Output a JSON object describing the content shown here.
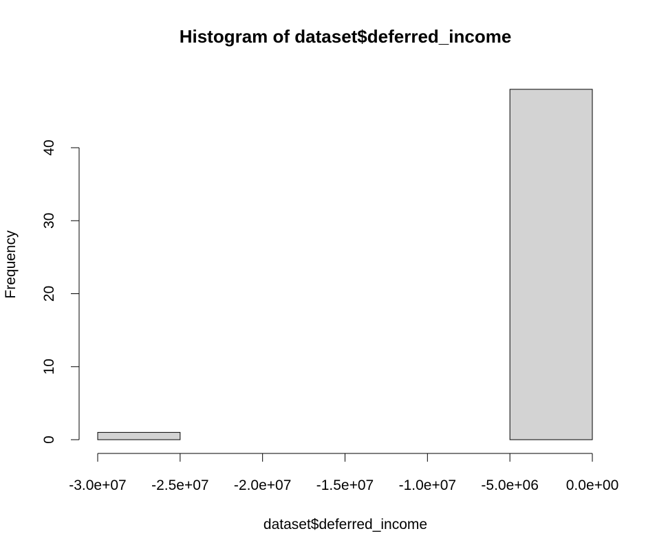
{
  "chart_data": {
    "type": "bar",
    "title": "Histogram of dataset$deferred_income",
    "xlabel": "dataset$deferred_income",
    "ylabel": "Frequency",
    "bins": [
      {
        "from": -30000000,
        "to": -25000000,
        "count": 1
      },
      {
        "from": -25000000,
        "to": -20000000,
        "count": 0
      },
      {
        "from": -20000000,
        "to": -15000000,
        "count": 0
      },
      {
        "from": -15000000,
        "to": -10000000,
        "count": 0
      },
      {
        "from": -10000000,
        "to": -5000000,
        "count": 0
      },
      {
        "from": -5000000,
        "to": 0,
        "count": 48
      }
    ],
    "xlim": [
      -30000000,
      0
    ],
    "ylim": [
      0,
      48
    ],
    "x_ticks": [
      {
        "value": -30000000,
        "label": "-3.0e+07"
      },
      {
        "value": -25000000,
        "label": "-2.5e+07"
      },
      {
        "value": -20000000,
        "label": "-2.0e+07"
      },
      {
        "value": -15000000,
        "label": "-1.5e+07"
      },
      {
        "value": -10000000,
        "label": "-1.0e+07"
      },
      {
        "value": -5000000,
        "label": "-5.0e+06"
      },
      {
        "value": 0,
        "label": "0.0e+00"
      }
    ],
    "y_ticks": [
      {
        "value": 0,
        "label": "0"
      },
      {
        "value": 10,
        "label": "10"
      },
      {
        "value": 20,
        "label": "20"
      },
      {
        "value": 30,
        "label": "30"
      },
      {
        "value": 40,
        "label": "40"
      }
    ],
    "grid": false,
    "colors": {
      "bar_fill": "#d3d3d3",
      "bar_stroke": "#000000"
    }
  }
}
